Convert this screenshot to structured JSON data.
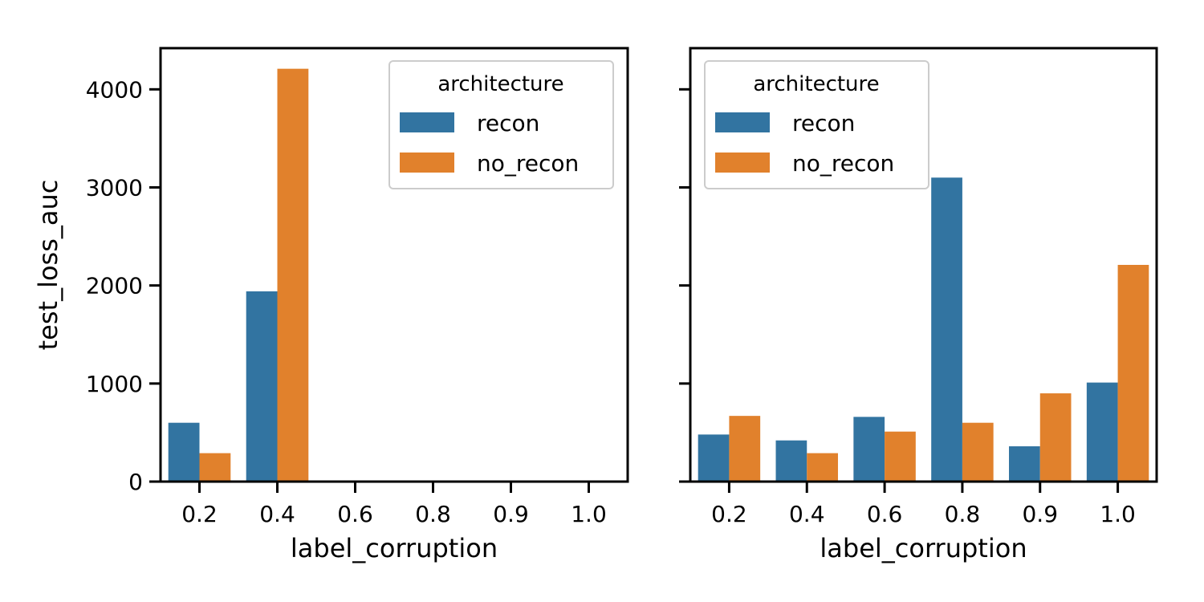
{
  "chart_data": [
    {
      "type": "bar",
      "categories": [
        "0.2",
        "0.4",
        "0.6",
        "0.8",
        "0.9",
        "1.0"
      ],
      "series": [
        {
          "name": "recon",
          "values": [
            600,
            1940,
            null,
            null,
            null,
            null
          ],
          "color": "#3274a1"
        },
        {
          "name": "no_recon",
          "values": [
            290,
            4210,
            null,
            null,
            null,
            null
          ],
          "color": "#e1812c"
        }
      ],
      "xlabel": "label_corruption",
      "ylabel": "test_loss_auc",
      "ylim": [
        0,
        4420
      ],
      "yticks": [
        0,
        1000,
        2000,
        3000,
        4000
      ],
      "legend": {
        "title": "architecture",
        "placement": "top-right"
      },
      "grid": false
    },
    {
      "type": "bar",
      "categories": [
        "0.2",
        "0.4",
        "0.6",
        "0.8",
        "0.9",
        "1.0"
      ],
      "series": [
        {
          "name": "recon",
          "values": [
            480,
            420,
            660,
            3100,
            360,
            1010
          ],
          "color": "#3274a1"
        },
        {
          "name": "no_recon",
          "values": [
            670,
            290,
            510,
            600,
            900,
            2210
          ],
          "color": "#e1812c"
        }
      ],
      "xlabel": "label_corruption",
      "ylabel": "",
      "ylim": [
        0,
        4420
      ],
      "yticks": [
        0,
        1000,
        2000,
        3000,
        4000
      ],
      "legend": {
        "title": "architecture",
        "placement": "top-left"
      },
      "grid": false
    }
  ]
}
